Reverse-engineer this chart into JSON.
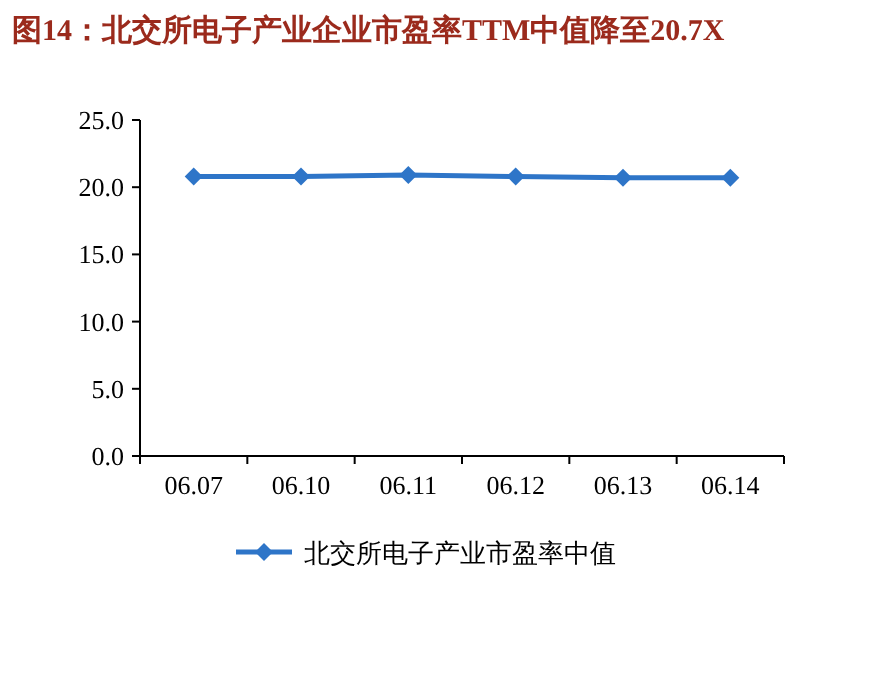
{
  "chart_data": {
    "type": "line",
    "title": "图14：北交所电子产业企业市盈率TTM中值降至20.7X",
    "categories": [
      "06.07",
      "06.10",
      "06.11",
      "06.12",
      "06.13",
      "06.14"
    ],
    "series": [
      {
        "name": "北交所电子产业市盈率中值",
        "color": "#2e75c8",
        "values": [
          20.8,
          20.8,
          20.9,
          20.8,
          20.7,
          20.7
        ]
      }
    ],
    "ylim": [
      0,
      25
    ],
    "yticks": [
      {
        "value": 0,
        "label": "0.0"
      },
      {
        "value": 5,
        "label": "5.0"
      },
      {
        "value": 10,
        "label": "10.0"
      },
      {
        "value": 15,
        "label": "15.0"
      },
      {
        "value": 20,
        "label": "20.0"
      },
      {
        "value": 25,
        "label": "25.0"
      }
    ],
    "marker": "diamond",
    "legend": "bottom",
    "grid": false
  }
}
